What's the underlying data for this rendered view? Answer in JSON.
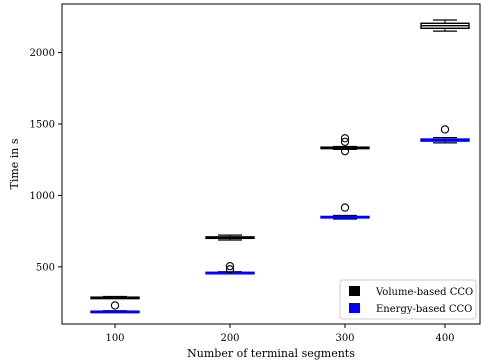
{
  "chart_data": {
    "type": "box",
    "xlabel": "Number of terminal segments",
    "ylabel": "Time in s",
    "categories": [
      "100",
      "200",
      "300",
      "400"
    ],
    "yticks": [
      500,
      1000,
      1500,
      2000
    ],
    "ylim": [
      100,
      2340
    ],
    "grid": false,
    "legend_position": "bottom-right",
    "series": [
      {
        "name": "Volume-based CCO",
        "color": "#000000",
        "boxes": [
          {
            "category": "100",
            "whislo": 280,
            "q1": 283,
            "med": 285,
            "q3": 288,
            "whishi": 293,
            "fliers": [
              230
            ]
          },
          {
            "category": "200",
            "whislo": 688,
            "q1": 700,
            "med": 705,
            "q3": 710,
            "whishi": 722,
            "fliers": []
          },
          {
            "category": "300",
            "whislo": 1322,
            "q1": 1328,
            "med": 1333,
            "q3": 1338,
            "whishi": 1343,
            "fliers": [
              1310,
              1375,
              1400
            ]
          },
          {
            "category": "400",
            "whislo": 2150,
            "q1": 2170,
            "med": 2188,
            "q3": 2205,
            "whishi": 2228,
            "fliers": []
          }
        ]
      },
      {
        "name": "Energy-based CCO",
        "color": "#0000ff",
        "boxes": [
          {
            "category": "100",
            "whislo": 183,
            "q1": 186,
            "med": 188,
            "q3": 190,
            "whishi": 193,
            "fliers": []
          },
          {
            "category": "200",
            "whislo": 452,
            "q1": 456,
            "med": 459,
            "q3": 462,
            "whishi": 466,
            "fliers": [
              483,
              505
            ]
          },
          {
            "category": "300",
            "whislo": 835,
            "q1": 843,
            "med": 848,
            "q3": 853,
            "whishi": 860,
            "fliers": [
              915
            ]
          },
          {
            "category": "400",
            "whislo": 1368,
            "q1": 1380,
            "med": 1388,
            "q3": 1395,
            "whishi": 1405,
            "fliers": [
              1462
            ]
          }
        ]
      }
    ]
  }
}
